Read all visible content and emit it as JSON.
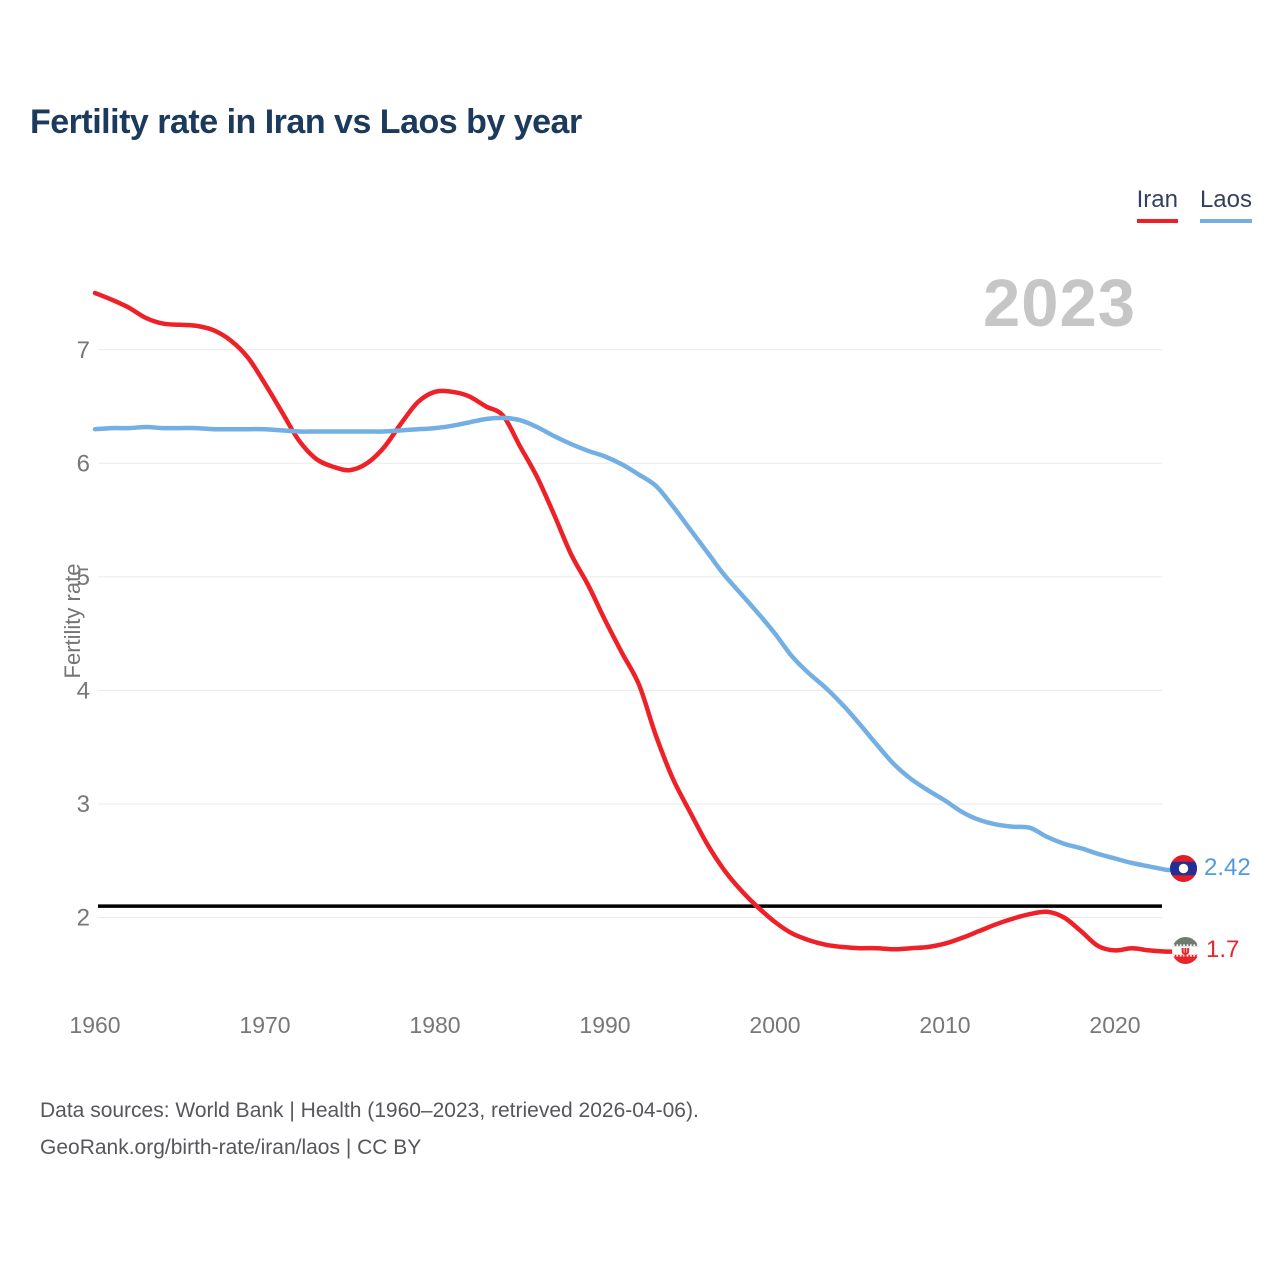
{
  "header": {
    "title": "Fertility rate in Iran vs Laos by year"
  },
  "legend": {
    "items": [
      {
        "label": "Iran",
        "color": "#ee2128"
      },
      {
        "label": "Laos",
        "color": "#74afe4"
      }
    ]
  },
  "watermark": {
    "year": "2023"
  },
  "end_labels": [
    {
      "series": "Laos",
      "value": "2.42",
      "flag": "laos-flag"
    },
    {
      "series": "Iran",
      "value": "1.7",
      "flag": "iran-flag"
    }
  ],
  "footer": {
    "line1": "Data sources: World Bank | Health (1960–2023, retrieved 2026-04-06).",
    "line2": "GeoRank.org/birth-rate/iran/laos | CC BY"
  },
  "chart_data": {
    "type": "line",
    "title": "Fertility rate in Iran vs Laos by year",
    "xlabel": "",
    "ylabel": "Fertility rate",
    "xlim": [
      1960,
      2023
    ],
    "ylim": [
      1.55,
      7.6
    ],
    "grid": true,
    "legend_position": "top-right",
    "x_ticks": [
      1960,
      1970,
      1980,
      1990,
      2000,
      2010,
      2020
    ],
    "y_ticks": [
      2,
      3,
      4,
      5,
      6,
      7
    ],
    "reference_line": {
      "value": 2.1,
      "color": "#000000"
    },
    "years": [
      1960,
      1961,
      1962,
      1963,
      1964,
      1965,
      1966,
      1967,
      1968,
      1969,
      1970,
      1971,
      1972,
      1973,
      1974,
      1975,
      1976,
      1977,
      1978,
      1979,
      1980,
      1981,
      1982,
      1983,
      1984,
      1985,
      1986,
      1987,
      1988,
      1989,
      1990,
      1991,
      1992,
      1993,
      1994,
      1995,
      1996,
      1997,
      1998,
      1999,
      2000,
      2001,
      2002,
      2003,
      2004,
      2005,
      2006,
      2007,
      2008,
      2009,
      2010,
      2011,
      2012,
      2013,
      2014,
      2015,
      2016,
      2017,
      2018,
      2019,
      2020,
      2021,
      2022,
      2023
    ],
    "series": [
      {
        "name": "Iran",
        "color": "#ee2128",
        "end_value": 1.7,
        "values": [
          7.5,
          7.44,
          7.37,
          7.28,
          7.23,
          7.22,
          7.21,
          7.17,
          7.08,
          6.93,
          6.7,
          6.45,
          6.2,
          6.04,
          5.97,
          5.94,
          6.0,
          6.14,
          6.35,
          6.54,
          6.63,
          6.63,
          6.59,
          6.5,
          6.42,
          6.15,
          5.88,
          5.55,
          5.2,
          4.93,
          4.62,
          4.33,
          4.05,
          3.6,
          3.22,
          2.93,
          2.65,
          2.42,
          2.24,
          2.09,
          1.96,
          1.86,
          1.8,
          1.76,
          1.74,
          1.73,
          1.73,
          1.72,
          1.73,
          1.74,
          1.77,
          1.82,
          1.88,
          1.94,
          1.99,
          2.03,
          2.05,
          2.0,
          1.88,
          1.75,
          1.71,
          1.73,
          1.71,
          1.7
        ]
      },
      {
        "name": "Laos",
        "color": "#74afe4",
        "end_value": 2.42,
        "values": [
          6.3,
          6.31,
          6.31,
          6.32,
          6.31,
          6.31,
          6.31,
          6.3,
          6.3,
          6.3,
          6.3,
          6.29,
          6.28,
          6.28,
          6.28,
          6.28,
          6.28,
          6.28,
          6.29,
          6.3,
          6.31,
          6.33,
          6.36,
          6.39,
          6.4,
          6.38,
          6.32,
          6.24,
          6.17,
          6.11,
          6.06,
          5.99,
          5.9,
          5.8,
          5.62,
          5.42,
          5.22,
          5.02,
          4.85,
          4.68,
          4.5,
          4.3,
          4.15,
          4.02,
          3.87,
          3.7,
          3.52,
          3.35,
          3.22,
          3.12,
          3.03,
          2.93,
          2.86,
          2.82,
          2.8,
          2.79,
          2.71,
          2.65,
          2.61,
          2.56,
          2.52,
          2.48,
          2.45,
          2.42
        ]
      }
    ]
  }
}
